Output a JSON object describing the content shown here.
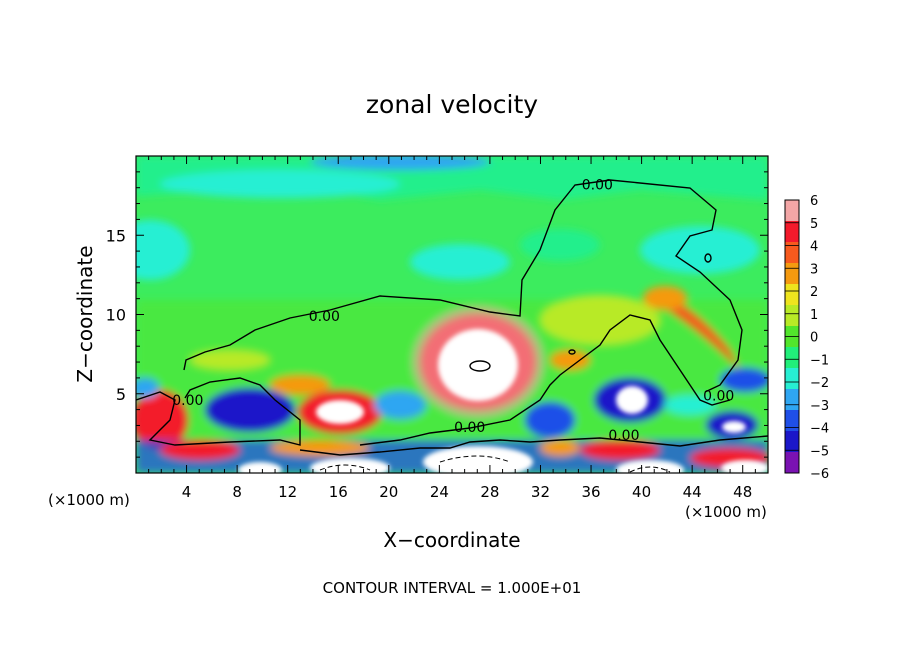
{
  "chart_data": {
    "type": "heatmap",
    "title": "zonal velocity",
    "xlabel": "X−coordinate",
    "ylabel": "Z−coordinate",
    "x_unit_left": "(×1000 m)",
    "x_unit_right": "(×1000 m)",
    "footer": "CONTOUR INTERVAL = 1.000E+01",
    "xlim": [
      0,
      50
    ],
    "ylim": [
      0,
      20
    ],
    "x_ticks": [
      4,
      8,
      12,
      16,
      20,
      24,
      28,
      32,
      36,
      40,
      44,
      48
    ],
    "y_ticks": [
      5,
      10,
      15
    ],
    "colorbar": {
      "range": [
        -6,
        6
      ],
      "labels": [
        "6",
        "5",
        "4",
        "3",
        "2",
        "1",
        "0",
        "−1",
        "−2",
        "−3",
        "−4",
        "−5",
        "−6"
      ],
      "colors": [
        "#f3a6a6",
        "#f31a2b",
        "#f75a1e",
        "#f59a10",
        "#eee41e",
        "#b8ea26",
        "#52e62c",
        "#21ef7a",
        "#27efd3",
        "#2fa6f2",
        "#1f4fe8",
        "#1b17c9",
        "#7a12b2"
      ]
    },
    "contour_labels": [
      {
        "text": "0.00",
        "x": 14.9,
        "z": 9.9
      },
      {
        "text": "0.00",
        "x": 4.1,
        "z": 4.6
      },
      {
        "text": "0.00",
        "x": 36.5,
        "z": 18.2
      },
      {
        "text": "0.00",
        "x": 26.4,
        "z": 2.9
      },
      {
        "text": "0.00",
        "x": 38.6,
        "z": 2.4
      },
      {
        "text": "0.00",
        "x": 46.1,
        "z": 4.9
      }
    ]
  }
}
